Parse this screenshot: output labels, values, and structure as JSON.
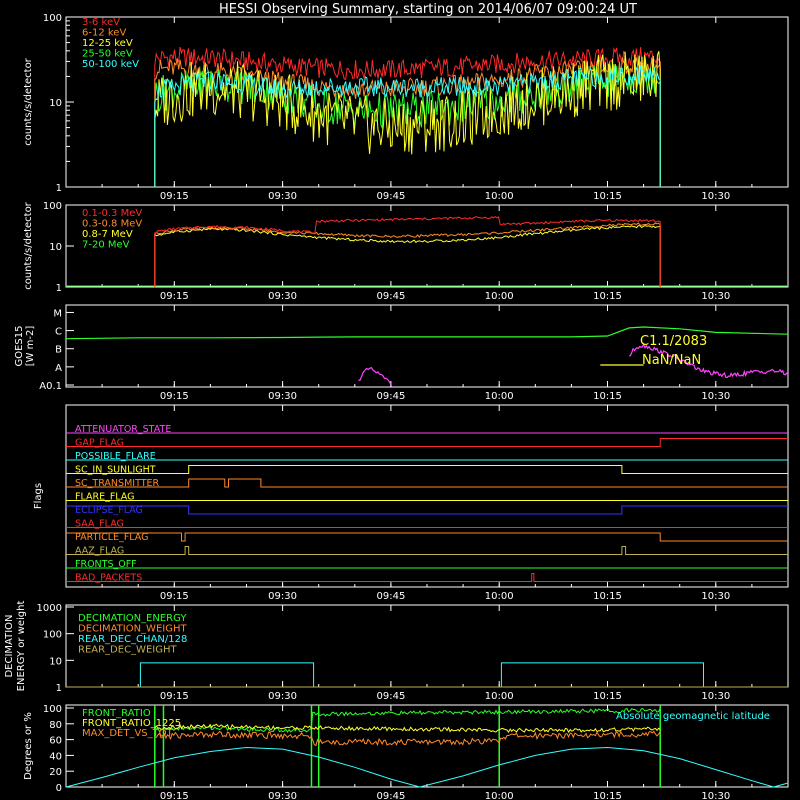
{
  "title": "HESSI Observing Summary, starting on 2014/06/07 09:00:24 UT",
  "time_axis": {
    "ticks": [
      "09:15",
      "09:30",
      "09:45",
      "10:00",
      "10:15",
      "10:30"
    ],
    "tick_minutes": [
      15,
      30,
      45,
      60,
      75,
      90
    ],
    "range_minutes": [
      0,
      100
    ]
  },
  "colors": {
    "background": "#000000",
    "frame": "#ffffff",
    "red": "#ff2a2a",
    "orange": "#ff8a2a",
    "yellow": "#ffff2a",
    "green": "#2aff2a",
    "cyan": "#33ffff",
    "magenta": "#ff44ff",
    "blue": "#3333ff",
    "olive": "#c0b050"
  },
  "chart_data": [
    {
      "type": "line",
      "id": "rates",
      "ylabel": "counts/s/detector",
      "yscale": "log",
      "ylim": [
        1,
        100
      ],
      "yticks": [
        "1",
        "10",
        "100"
      ],
      "x_range_minutes": [
        12.3,
        82.3
      ],
      "series": [
        {
          "name": "3-6 keV",
          "color": "#ff2a2a",
          "x": [
            12.3,
            15,
            20,
            25,
            30,
            35,
            40,
            45,
            50,
            55,
            60,
            65,
            70,
            75,
            80,
            82.3
          ],
          "y": [
            32,
            34,
            33,
            30,
            27,
            25,
            24,
            24,
            25,
            26,
            28,
            30,
            31,
            33,
            34,
            34
          ]
        },
        {
          "name": "6-12 keV",
          "color": "#ff8a2a",
          "x": [
            12.3,
            15,
            20,
            25,
            30,
            35,
            40,
            45,
            50,
            55,
            60,
            65,
            70,
            75,
            80,
            82.3
          ],
          "y": [
            24,
            25,
            23,
            20,
            17,
            15,
            14,
            14,
            15,
            16,
            18,
            21,
            23,
            25,
            26,
            26
          ]
        },
        {
          "name": "12-25 keV",
          "color": "#ffff2a",
          "x": [
            12.3,
            15,
            20,
            25,
            30,
            35,
            40,
            45,
            50,
            55,
            60,
            65,
            70,
            75,
            80,
            82.3
          ],
          "y": [
            9,
            12,
            15,
            13,
            10,
            7,
            5.5,
            5,
            5.5,
            6,
            8,
            11,
            14,
            17,
            19,
            20
          ]
        },
        {
          "name": "25-50 keV",
          "color": "#2aff2a",
          "x": [
            12.3,
            15,
            20,
            25,
            30,
            35,
            40,
            45,
            50,
            55,
            60,
            65,
            70,
            75,
            80,
            82.3
          ],
          "y": [
            12,
            14,
            17,
            15,
            12,
            9,
            8,
            8,
            8,
            9,
            10,
            12,
            15,
            18,
            20,
            21
          ]
        },
        {
          "name": "50-100 keV",
          "color": "#33ffff",
          "x": [
            12.3,
            15,
            20,
            25,
            30,
            35,
            40,
            45,
            50,
            55,
            60,
            65,
            70,
            75,
            80,
            82.3
          ],
          "y": [
            13,
            15,
            18,
            16,
            14,
            15,
            15,
            15,
            15,
            15,
            15,
            17,
            19,
            20,
            21,
            22
          ]
        }
      ]
    },
    {
      "type": "line",
      "id": "gamma",
      "ylabel": "counts/s/detector",
      "yscale": "log",
      "ylim": [
        1,
        100
      ],
      "yticks": [
        "1",
        "10",
        "100"
      ],
      "x_range_minutes": [
        12.3,
        82.3
      ],
      "series": [
        {
          "name": "0.1-0.3 MeV",
          "color": "#ff2a2a",
          "x": [
            12.3,
            15,
            20,
            25,
            30,
            34.5,
            34.6,
            40,
            45,
            50,
            55,
            60,
            60.1,
            65,
            70,
            75,
            80,
            82.3
          ],
          "y": [
            22,
            26,
            30,
            28,
            24,
            21,
            40,
            42,
            44,
            46,
            48,
            50,
            34,
            36,
            40,
            42,
            42,
            40
          ]
        },
        {
          "name": "0.3-0.8 MeV",
          "color": "#ff8a2a",
          "x": [
            12.3,
            15,
            20,
            25,
            30,
            35,
            40,
            45,
            50,
            55,
            60,
            65,
            70,
            75,
            80,
            82.3
          ],
          "y": [
            20,
            24,
            28,
            26,
            22,
            20,
            18,
            17,
            18,
            19,
            21,
            24,
            28,
            32,
            34,
            34
          ]
        },
        {
          "name": "0.8-7 MeV",
          "color": "#ffff2a",
          "x": [
            12.3,
            15,
            20,
            25,
            30,
            35,
            40,
            45,
            50,
            55,
            60,
            65,
            70,
            75,
            80,
            82.3
          ],
          "y": [
            18,
            22,
            26,
            24,
            19,
            16,
            14,
            13,
            13,
            14,
            16,
            20,
            24,
            28,
            30,
            30
          ]
        },
        {
          "name": "7-20 MeV",
          "color": "#2aff2a",
          "x": [
            0,
            100
          ],
          "y": [
            1,
            1
          ]
        }
      ]
    },
    {
      "type": "line",
      "id": "goes",
      "ylabel": "GOES15",
      "ylabel2": "[W m-2]",
      "yticks": [
        "A0.1",
        "A",
        "B",
        "C",
        "M"
      ],
      "annotations": [
        "C1.1/2083",
        "NaN/NaN"
      ],
      "series": [
        {
          "name": "GOES long",
          "color": "#2aff2a",
          "x": [
            0,
            10,
            20,
            30,
            35,
            40,
            50,
            60,
            70,
            75,
            78,
            80,
            85,
            90,
            100
          ],
          "y": [
            2.55,
            2.6,
            2.6,
            2.62,
            2.64,
            2.65,
            2.65,
            2.65,
            2.65,
            2.7,
            3.15,
            3.2,
            3.1,
            2.9,
            2.8
          ]
        },
        {
          "name": "GOES short",
          "color": "#ff44ff",
          "x": [
            40.5,
            41,
            42,
            43,
            44,
            45,
            78,
            79,
            80,
            82,
            84,
            86,
            88,
            90,
            92,
            95,
            98,
            100
          ],
          "y": [
            0.2,
            0.6,
            0.9,
            0.7,
            0.4,
            0.1,
            1.6,
            2.1,
            2.2,
            1.9,
            1.6,
            1.2,
            0.8,
            0.6,
            0.5,
            0.7,
            0.8,
            0.6
          ]
        },
        {
          "name": "reference",
          "color": "#ffff2a",
          "x": [
            74,
            80
          ],
          "y": [
            1.1,
            1.1
          ]
        }
      ]
    },
    {
      "type": "line",
      "id": "flags",
      "ylabel": "Flags",
      "flags": [
        {
          "name": "ATTENUATOR_STATE",
          "color": "#ff44ff",
          "segments": [
            [
              0,
              100,
              0
            ]
          ]
        },
        {
          "name": "GAP_FLAG",
          "color": "#ff2a2a",
          "segments": [
            [
              0,
              82.3,
              0
            ],
            [
              82.3,
              100,
              1
            ]
          ]
        },
        {
          "name": "POSSIBLE_FLARE",
          "color": "#33ffff",
          "segments": [
            [
              0,
              100,
              0
            ]
          ]
        },
        {
          "name": "SC_IN_SUNLIGHT",
          "color": "#ffff2a",
          "segments": [
            [
              0,
              17,
              0
            ],
            [
              17,
              77,
              1
            ],
            [
              77,
              100,
              0
            ]
          ]
        },
        {
          "name": "SC_TRANSMITTER",
          "color": "#ff8a2a",
          "segments": [
            [
              0,
              17,
              0
            ],
            [
              17,
              22,
              1
            ],
            [
              22,
              22.5,
              0
            ],
            [
              22.5,
              27,
              1
            ],
            [
              27,
              100,
              0
            ]
          ]
        },
        {
          "name": "FLARE_FLAG",
          "color": "#ffff2a",
          "segments": [
            [
              0,
              100,
              0
            ]
          ]
        },
        {
          "name": "ECLIPSE_FLAG",
          "color": "#3333ff",
          "segments": [
            [
              0,
              17,
              1
            ],
            [
              17,
              77,
              0
            ],
            [
              77,
              100,
              1
            ]
          ]
        },
        {
          "name": "SAA_FLAG",
          "color": "#ff2a2a",
          "segments": [
            [
              0,
              100,
              0
            ]
          ]
        },
        {
          "name": "PARTICLE_FLAG",
          "color": "#ff8a2a",
          "segments": [
            [
              0,
              16,
              1
            ],
            [
              16,
              16.5,
              0
            ],
            [
              16.5,
              82.3,
              1
            ],
            [
              82.3,
              100,
              0
            ]
          ]
        },
        {
          "name": "AAZ_FLAG",
          "color": "#c0b050",
          "segments": [
            [
              0,
              16.5,
              0
            ],
            [
              16.5,
              17,
              1
            ],
            [
              17,
              77,
              0
            ],
            [
              77,
              77.5,
              1
            ],
            [
              77.5,
              100,
              0
            ]
          ]
        },
        {
          "name": "FRONTS_OFF",
          "color": "#2aff2a",
          "segments": [
            [
              0,
              100,
              0
            ]
          ]
        },
        {
          "name": "BAD_PACKETS",
          "color": "#ff2a2a",
          "segments": [
            [
              0,
              64.5,
              0
            ],
            [
              64.5,
              64.8,
              1
            ],
            [
              64.8,
              100,
              0
            ]
          ]
        }
      ]
    },
    {
      "type": "line",
      "id": "decimation",
      "ylabel": "DECIMATION",
      "ylabel2": "ENERGY or weight",
      "yscale": "log",
      "ylim": [
        1,
        1000
      ],
      "yticks": [
        "1",
        "10",
        "100",
        "1000"
      ],
      "series": [
        {
          "name": "DECIMATION_ENERGY",
          "color": "#2aff2a",
          "x": [
            0,
            100
          ],
          "y": [
            1,
            1
          ]
        },
        {
          "name": "DECIMATION_WEIGHT",
          "color": "#ff8a2a",
          "x": [
            0,
            100
          ],
          "y": [
            1,
            1
          ]
        },
        {
          "name": "REAR_DEC_CHAN/128",
          "color": "#33ffff",
          "x": [
            10.3,
            10.3,
            34.3,
            34.3,
            60.3,
            60.3,
            88.3,
            88.3
          ],
          "y": [
            1,
            8,
            8,
            1,
            1,
            8,
            8,
            1
          ]
        },
        {
          "name": "REAR_DEC_WEIGHT",
          "color": "#c0b050",
          "x": [
            0,
            100
          ],
          "y": [
            1,
            1
          ]
        }
      ]
    },
    {
      "type": "line",
      "id": "ratios",
      "ylabel": "Degrees or %",
      "ylim": [
        0,
        100
      ],
      "yticks": [
        "0",
        "20",
        "40",
        "60",
        "80",
        "100"
      ],
      "annotation": "Absolute geomagnetic latitude",
      "series": [
        {
          "name": "FRONT_RATIO",
          "color": "#2aff2a",
          "x": [
            12.3,
            15,
            20,
            25,
            30,
            34,
            34.1,
            40,
            50,
            60,
            70,
            80,
            82.3
          ],
          "y": [
            72,
            74,
            75,
            73,
            72,
            72,
            92,
            93,
            94,
            95,
            96,
            97,
            97
          ]
        },
        {
          "name": "FRONT_RATIO_1225",
          "color": "#ffff2a",
          "x": [
            12.3,
            15,
            20,
            25,
            30,
            35,
            40,
            50,
            60,
            70,
            80,
            82.3
          ],
          "y": [
            75,
            76,
            77,
            76,
            75,
            75,
            74,
            73,
            72,
            72,
            73,
            74
          ]
        },
        {
          "name": "MAX_DET_VS_TOT",
          "color": "#ff8a2a",
          "x": [
            12.3,
            15,
            20,
            25,
            30,
            34,
            34.1,
            40,
            50,
            60,
            60.1,
            70,
            80,
            82.3
          ],
          "y": [
            64,
            65,
            67,
            66,
            65,
            65,
            56,
            57,
            57,
            58,
            64,
            66,
            67,
            67
          ]
        },
        {
          "name": "Absolute geomagnetic latitude",
          "color": "#33ffff",
          "x": [
            0,
            5,
            10,
            15,
            20,
            25,
            30,
            35,
            40,
            45,
            49,
            55,
            60,
            65,
            70,
            75,
            80,
            85,
            90,
            95,
            98,
            100
          ],
          "y": [
            0,
            12,
            25,
            37,
            45,
            50,
            48,
            38,
            25,
            10,
            0,
            14,
            28,
            40,
            48,
            50,
            46,
            36,
            22,
            8,
            0,
            5
          ]
        }
      ]
    }
  ]
}
